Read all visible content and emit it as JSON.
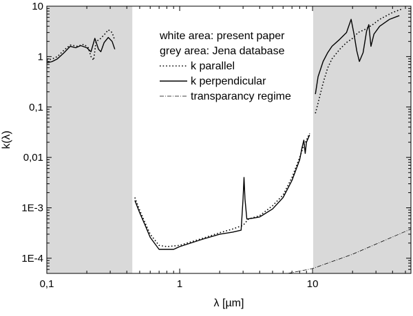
{
  "chart_data": {
    "type": "line",
    "xlabel": "λ [µm]",
    "ylabel": "k(λ)",
    "xscale": "log",
    "yscale": "log",
    "xlim": [
      0.1,
      55
    ],
    "ylim": [
      5e-05,
      10
    ],
    "xticks": [
      {
        "value": 0.1,
        "label": "0,1"
      },
      {
        "value": 1,
        "label": "1"
      },
      {
        "value": 10,
        "label": "10"
      }
    ],
    "yticks": [
      {
        "value": 10,
        "label": "10"
      },
      {
        "value": 1,
        "label": "1"
      },
      {
        "value": 0.1,
        "label": "0,1"
      },
      {
        "value": 0.01,
        "label": "0,01"
      },
      {
        "value": 0.001,
        "label": "1E-3"
      },
      {
        "value": 0.0001,
        "label": "1E-4"
      }
    ],
    "grey_regions": [
      [
        0.1,
        0.44
      ],
      [
        10.1,
        55
      ]
    ],
    "legend": {
      "placement": "top-center",
      "lines": [
        "white area: present paper",
        "grey area: Jena database"
      ],
      "entries": [
        {
          "label": "k parallel",
          "style": "dotted"
        },
        {
          "label": "k perpendicular",
          "style": "solid"
        },
        {
          "label": "transparancy regime",
          "style": "dashdot"
        }
      ]
    },
    "series": [
      {
        "name": "k parallel",
        "segment": "jena-uv",
        "style": "dotted",
        "points": [
          [
            0.1,
            0.85
          ],
          [
            0.11,
            0.9
          ],
          [
            0.12,
            1.0
          ],
          [
            0.135,
            1.35
          ],
          [
            0.15,
            1.7
          ],
          [
            0.17,
            1.6
          ],
          [
            0.19,
            1.75
          ],
          [
            0.205,
            1.5
          ],
          [
            0.215,
            1.0
          ],
          [
            0.225,
            0.85
          ],
          [
            0.235,
            2.0
          ],
          [
            0.25,
            2.2
          ],
          [
            0.27,
            2.7
          ],
          [
            0.29,
            3.4
          ],
          [
            0.31,
            3.0
          ],
          [
            0.325,
            2.1
          ]
        ]
      },
      {
        "name": "k perpendicular",
        "segment": "jena-uv",
        "style": "solid",
        "points": [
          [
            0.1,
            0.75
          ],
          [
            0.11,
            0.8
          ],
          [
            0.12,
            0.9
          ],
          [
            0.135,
            1.2
          ],
          [
            0.15,
            1.6
          ],
          [
            0.165,
            1.5
          ],
          [
            0.18,
            1.65
          ],
          [
            0.2,
            1.5
          ],
          [
            0.215,
            1.25
          ],
          [
            0.23,
            2.3
          ],
          [
            0.245,
            1.4
          ],
          [
            0.255,
            1.25
          ],
          [
            0.27,
            1.9
          ],
          [
            0.29,
            2.4
          ],
          [
            0.31,
            2.0
          ],
          [
            0.325,
            1.4
          ]
        ]
      },
      {
        "name": "k parallel",
        "segment": "present-paper",
        "style": "dotted",
        "points": [
          [
            0.46,
            0.0016
          ],
          [
            0.5,
            0.0009
          ],
          [
            0.55,
            0.0005
          ],
          [
            0.6,
            0.0003
          ],
          [
            0.7,
            0.00018
          ],
          [
            0.8,
            0.00017
          ],
          [
            1,
            0.00018
          ],
          [
            1.5,
            0.00025
          ],
          [
            2,
            0.00032
          ],
          [
            2.5,
            0.00038
          ],
          [
            3,
            0.00045
          ],
          [
            3.3,
            0.0006
          ],
          [
            4,
            0.0007
          ],
          [
            5,
            0.0011
          ],
          [
            6,
            0.0018
          ],
          [
            7,
            0.004
          ],
          [
            8,
            0.01
          ],
          [
            8.5,
            0.016
          ],
          [
            9,
            0.022
          ],
          [
            9.5,
            0.03
          ]
        ]
      },
      {
        "name": "k perpendicular",
        "segment": "present-paper",
        "style": "solid",
        "points": [
          [
            0.46,
            0.0014
          ],
          [
            0.5,
            0.0008
          ],
          [
            0.55,
            0.00045
          ],
          [
            0.6,
            0.00026
          ],
          [
            0.7,
            0.00015
          ],
          [
            0.8,
            0.00015
          ],
          [
            0.9,
            0.00015
          ],
          [
            1,
            0.00017
          ],
          [
            1.5,
            0.00024
          ],
          [
            2,
            0.0003
          ],
          [
            2.5,
            0.00033
          ],
          [
            2.9,
            0.00036
          ],
          [
            3.0,
            0.0015
          ],
          [
            3.05,
            0.004
          ],
          [
            3.1,
            0.0015
          ],
          [
            3.2,
            0.0006
          ],
          [
            3.5,
            0.00062
          ],
          [
            4,
            0.00066
          ],
          [
            5,
            0.00095
          ],
          [
            6,
            0.0016
          ],
          [
            7,
            0.0035
          ],
          [
            8,
            0.009
          ],
          [
            8.3,
            0.015
          ],
          [
            8.6,
            0.022
          ],
          [
            8.8,
            0.012
          ],
          [
            9,
            0.02
          ],
          [
            9.5,
            0.028
          ]
        ]
      },
      {
        "name": "k parallel",
        "segment": "jena-ir",
        "style": "dotted",
        "points": [
          [
            10.5,
            0.075
          ],
          [
            11,
            0.12
          ],
          [
            12,
            0.3
          ],
          [
            13,
            0.6
          ],
          [
            14,
            0.9
          ],
          [
            16,
            1.4
          ],
          [
            18,
            1.9
          ],
          [
            20,
            2.3
          ],
          [
            22,
            3.0
          ],
          [
            25,
            3.5
          ],
          [
            28,
            4.2
          ],
          [
            32,
            5.5
          ],
          [
            40,
            7.5
          ],
          [
            48,
            9
          ]
        ]
      },
      {
        "name": "k perpendicular",
        "segment": "jena-ir",
        "style": "solid",
        "points": [
          [
            10.5,
            0.18
          ],
          [
            11,
            0.4
          ],
          [
            12,
            0.8
          ],
          [
            13,
            1.2
          ],
          [
            14,
            1.6
          ],
          [
            16,
            2.2
          ],
          [
            18,
            3.0
          ],
          [
            19.5,
            5.5
          ],
          [
            20.5,
            2.8
          ],
          [
            21.5,
            1.3
          ],
          [
            22.5,
            0.8
          ],
          [
            24,
            1.2
          ],
          [
            25.5,
            3.2
          ],
          [
            26.5,
            4.3
          ],
          [
            27.5,
            1.6
          ],
          [
            29,
            2.8
          ],
          [
            32,
            4.0
          ],
          [
            38,
            5.5
          ],
          [
            45,
            6.5
          ]
        ]
      },
      {
        "name": "transparancy regime",
        "segment": "extrapolation",
        "style": "dashdot",
        "points": [
          [
            6.5,
            5e-05
          ],
          [
            10,
            6.25e-05
          ],
          [
            20,
            0.00012
          ],
          [
            55,
            0.00038
          ]
        ]
      }
    ]
  }
}
